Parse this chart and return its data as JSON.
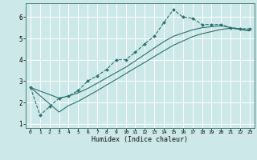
{
  "xlabel": "Humidex (Indice chaleur)",
  "xlim": [
    -0.5,
    23.5
  ],
  "ylim": [
    0.8,
    6.65
  ],
  "xticks": [
    0,
    1,
    2,
    3,
    4,
    5,
    6,
    7,
    8,
    9,
    10,
    11,
    12,
    13,
    14,
    15,
    16,
    17,
    18,
    19,
    20,
    21,
    22,
    23
  ],
  "yticks": [
    1,
    2,
    3,
    4,
    5,
    6
  ],
  "bg_color": "#cce8e8",
  "line_color": "#2a7070",
  "grid_color": "#ffffff",
  "line1_x": [
    0,
    1,
    2,
    3,
    4,
    5,
    6,
    7,
    8,
    9,
    10,
    11,
    12,
    13,
    14,
    15,
    16,
    17,
    18,
    19,
    20,
    21,
    22,
    23
  ],
  "line1_y": [
    2.7,
    1.4,
    1.8,
    2.2,
    2.3,
    2.55,
    3.0,
    3.25,
    3.55,
    4.0,
    4.0,
    4.35,
    4.75,
    5.1,
    5.75,
    6.35,
    6.0,
    5.95,
    5.65,
    5.65,
    5.65,
    5.5,
    5.45,
    5.45
  ],
  "line2_x": [
    0,
    3,
    4,
    5,
    6,
    7,
    8,
    9,
    10,
    11,
    12,
    13,
    14,
    15,
    16,
    17,
    18,
    19,
    20,
    21,
    22,
    23
  ],
  "line2_y": [
    2.7,
    2.2,
    2.3,
    2.45,
    2.65,
    2.9,
    3.15,
    3.4,
    3.65,
    3.95,
    4.25,
    4.55,
    4.85,
    5.1,
    5.25,
    5.4,
    5.5,
    5.55,
    5.6,
    5.5,
    5.45,
    5.38
  ],
  "line3_x": [
    0,
    3,
    4,
    5,
    6,
    7,
    8,
    9,
    10,
    11,
    12,
    13,
    14,
    15,
    16,
    17,
    18,
    19,
    20,
    21,
    22,
    23
  ],
  "line3_y": [
    2.7,
    1.55,
    1.85,
    2.05,
    2.3,
    2.55,
    2.82,
    3.08,
    3.35,
    3.62,
    3.88,
    4.15,
    4.42,
    4.68,
    4.88,
    5.08,
    5.22,
    5.32,
    5.42,
    5.48,
    5.42,
    5.35
  ]
}
